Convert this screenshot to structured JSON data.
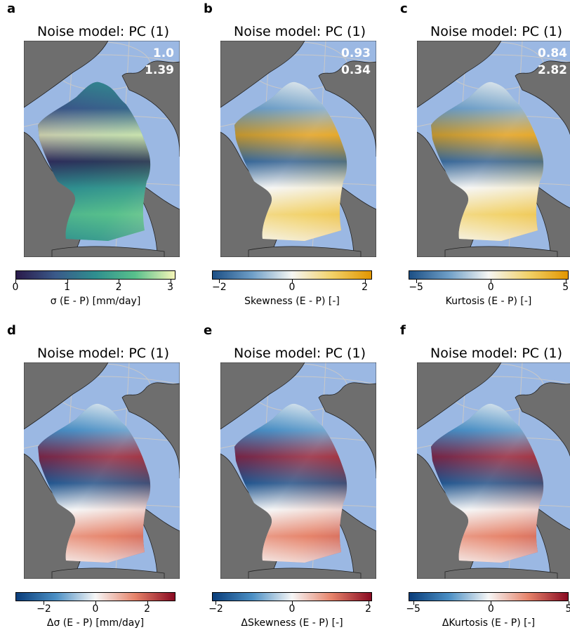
{
  "panels": [
    {
      "letter": "a",
      "title": "Noise model: PC (1)",
      "stat1": "1.0",
      "stat2": "1.39",
      "colorbar_label": "σ (E - P) [mm/day]",
      "ticks": [
        "0",
        "1",
        "2",
        "3"
      ],
      "tick_values": [
        0,
        1,
        2,
        3
      ],
      "range": [
        0,
        3.1
      ],
      "colormap": "viridis",
      "colors": [
        "#2a1a4a",
        "#3a5a8a",
        "#2f8f8f",
        "#58c08c",
        "#f5f5b8"
      ]
    },
    {
      "letter": "b",
      "title": "Noise model: PC (1)",
      "stat1": "0.93",
      "stat2": "0.34",
      "colorbar_label": "Skewness (E - P) [-]",
      "ticks": [
        "−2",
        "0",
        "2"
      ],
      "tick_values": [
        -2,
        0,
        2
      ],
      "range": [
        -2.2,
        2.2
      ],
      "colormap": "blue-white-yellow",
      "colors": [
        "#1c4f85",
        "#6f9fc7",
        "#f6f6f4",
        "#f2d26a",
        "#e29600"
      ]
    },
    {
      "letter": "c",
      "title": "Noise model: PC (1)",
      "stat1": "0.84",
      "stat2": "2.82",
      "colorbar_label": "Kurtosis (E - P) [-]",
      "ticks": [
        "−5",
        "0",
        "5"
      ],
      "tick_values": [
        -5,
        0,
        5
      ],
      "range": [
        -5.5,
        5.2
      ],
      "colormap": "blue-white-yellow",
      "colors": [
        "#1c4f85",
        "#6f9fc7",
        "#f6f6f4",
        "#f2d26a",
        "#e29600"
      ]
    },
    {
      "letter": "d",
      "title": "Noise model: PC (1)",
      "colorbar_label": "Δσ (E - P) [mm/day]",
      "ticks": [
        "−2",
        "0",
        "2"
      ],
      "tick_values": [
        -2,
        0,
        2
      ],
      "range": [
        -3.1,
        3.1
      ],
      "colormap": "RdBu_r",
      "colors": [
        "#0a3d7a",
        "#4b8fc4",
        "#f6f6f6",
        "#e6836a",
        "#8a0a22"
      ]
    },
    {
      "letter": "e",
      "title": "Noise model: PC (1)",
      "colorbar_label": "ΔSkewness (E - P) [-]",
      "ticks": [
        "−2",
        "0",
        "2"
      ],
      "tick_values": [
        -2,
        0,
        2
      ],
      "range": [
        -2.1,
        2.1
      ],
      "colormap": "RdBu_r",
      "colors": [
        "#0a3d7a",
        "#4b8fc4",
        "#f6f6f6",
        "#e6836a",
        "#8a0a22"
      ]
    },
    {
      "letter": "f",
      "title": "Noise model: PC (1)",
      "colorbar_label": "ΔKurtosis (E - P) [-]",
      "ticks": [
        "−5",
        "0",
        "5"
      ],
      "tick_values": [
        -5,
        0,
        5
      ],
      "range": [
        -5.3,
        5.0
      ],
      "colormap": "RdBu_r",
      "colors": [
        "#0a3d7a",
        "#4b8fc4",
        "#f6f6f6",
        "#e6836a",
        "#8a0a22"
      ]
    }
  ],
  "chart_data": [
    {
      "type": "heatmap",
      "title": "Noise model: PC (1)",
      "annotations": [
        "1.0",
        "1.39"
      ],
      "colorbar_label": "σ (E - P) [mm/day]",
      "colorbar_range": [
        0,
        3.1
      ],
      "ticks": [
        0,
        1,
        2,
        3
      ]
    },
    {
      "type": "heatmap",
      "title": "Noise model: PC (1)",
      "annotations": [
        "0.93",
        "0.34"
      ],
      "colorbar_label": "Skewness (E - P) [-]",
      "colorbar_range": [
        -2.2,
        2.2
      ],
      "ticks": [
        -2,
        0,
        2
      ]
    },
    {
      "type": "heatmap",
      "title": "Noise model: PC (1)",
      "annotations": [
        "0.84",
        "2.82"
      ],
      "colorbar_label": "Kurtosis (E - P) [-]",
      "colorbar_range": [
        -5.5,
        5.2
      ],
      "ticks": [
        -5,
        0,
        5
      ]
    },
    {
      "type": "heatmap",
      "title": "Noise model: PC (1)",
      "colorbar_label": "Δσ (E - P) [mm/day]",
      "colorbar_range": [
        -3.1,
        3.1
      ],
      "ticks": [
        -2,
        0,
        2
      ]
    },
    {
      "type": "heatmap",
      "title": "Noise model: PC (1)",
      "colorbar_label": "ΔSkewness (E - P) [-]",
      "colorbar_range": [
        -2.1,
        2.1
      ],
      "ticks": [
        -2,
        0,
        2
      ]
    },
    {
      "type": "heatmap",
      "title": "Noise model: PC (1)",
      "colorbar_label": "ΔKurtosis (E - P) [-]",
      "colorbar_range": [
        -5.3,
        5.0
      ],
      "ticks": [
        -5,
        0,
        5
      ]
    }
  ],
  "map_colors": {
    "ocean": "#9bb8e3",
    "land": "#6e6e6e",
    "coast": "#222222",
    "grid": "#c8c8c8"
  }
}
